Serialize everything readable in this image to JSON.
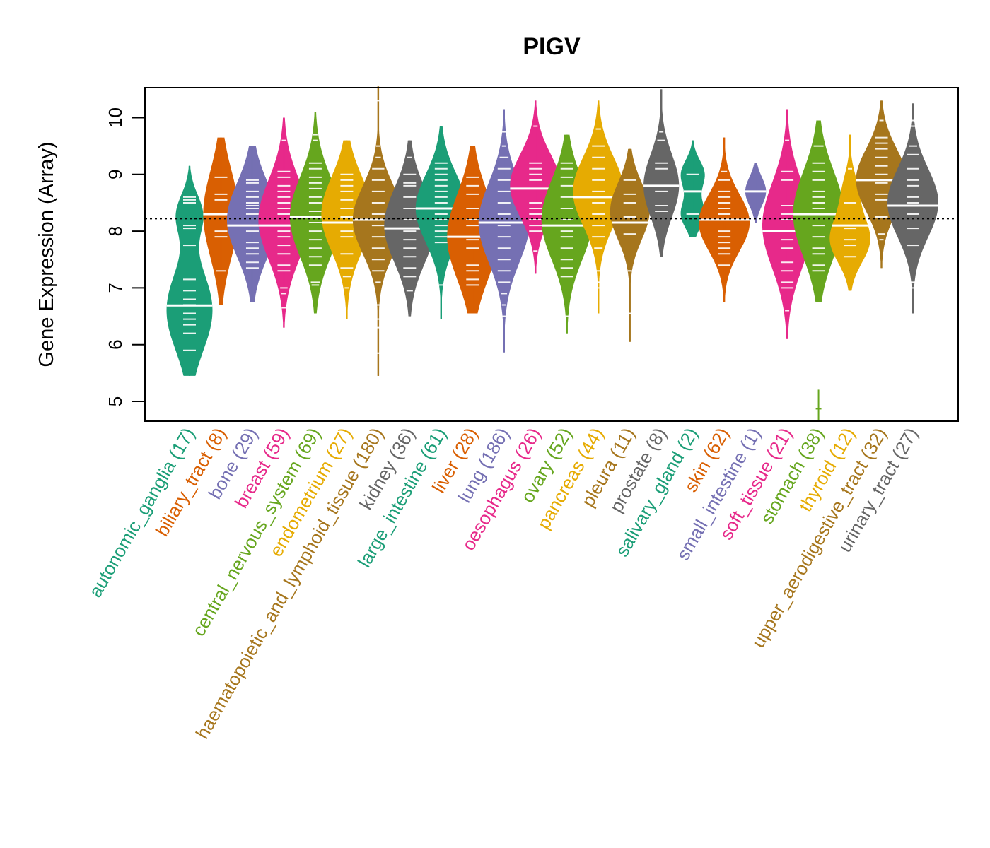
{
  "chart_data": {
    "type": "violin",
    "title": "PIGV",
    "xlabel": "",
    "ylabel": "Gene Expression (Array)",
    "ylim": [
      4.7,
      10.55
    ],
    "yticks": [
      5,
      6,
      7,
      8,
      9,
      10
    ],
    "reference_line": 8.22,
    "grid": false,
    "legend": "none",
    "categories": [
      {
        "name": "autonomic_ganglia",
        "n": 17,
        "color": "#1B9E77",
        "min": 5.45,
        "max": 9.15,
        "median": 6.69,
        "modes": [
          [
            6.6,
            0.7,
            1.0
          ],
          [
            8.3,
            0.35,
            0.55
          ]
        ],
        "points": [
          5.9,
          6.2,
          6.35,
          6.45,
          6.55,
          6.7,
          6.8,
          6.95,
          7.15,
          7.75,
          8.05,
          8.1,
          8.5,
          8.55,
          8.6
        ]
      },
      {
        "name": "biliary_tract",
        "n": 8,
        "color": "#D95F02",
        "min": 6.7,
        "max": 9.65,
        "median": 8.3,
        "modes": [
          [
            8.3,
            0.75,
            1.0
          ]
        ],
        "points": [
          7.3,
          7.9,
          8.0,
          8.55,
          8.65,
          8.95
        ]
      },
      {
        "name": "bone",
        "n": 29,
        "color": "#7570B3",
        "min": 6.75,
        "max": 9.5,
        "median": 8.1,
        "modes": [
          [
            8.2,
            0.65,
            1.0
          ]
        ],
        "points": [
          7.35,
          7.45,
          7.6,
          7.7,
          7.8,
          8.0,
          8.3,
          8.4,
          8.45,
          8.5,
          8.6,
          8.7,
          8.85,
          8.9
        ]
      },
      {
        "name": "breast",
        "n": 59,
        "color": "#E7298A",
        "min": 6.3,
        "max": 10.0,
        "median": 8.1,
        "modes": [
          [
            8.2,
            0.7,
            1.0
          ]
        ],
        "points": [
          6.65,
          6.9,
          7.0,
          7.3,
          7.4,
          7.6,
          7.75,
          7.9,
          8.0,
          8.3,
          8.4,
          8.5,
          8.6,
          8.7,
          8.8,
          8.95,
          9.05,
          9.6
        ]
      },
      {
        "name": "central_nervous_system",
        "n": 69,
        "color": "#66A61E",
        "min": 6.55,
        "max": 10.1,
        "median": 8.25,
        "modes": [
          [
            8.25,
            0.7,
            1.0
          ]
        ],
        "points": [
          7.05,
          7.1,
          7.4,
          7.55,
          7.7,
          7.85,
          8.0,
          8.15,
          8.35,
          8.5,
          8.6,
          8.75,
          8.85,
          8.95,
          9.1,
          9.2,
          9.6,
          9.7
        ]
      },
      {
        "name": "endometrium",
        "n": 27,
        "color": "#E6AB02",
        "min": 6.45,
        "max": 9.6,
        "median": 8.15,
        "modes": [
          [
            8.3,
            0.65,
            1.0
          ]
        ],
        "points": [
          7.0,
          7.2,
          7.35,
          7.6,
          7.9,
          8.0,
          8.25,
          8.4,
          8.55,
          8.7,
          8.8,
          8.9,
          9.0
        ]
      },
      {
        "name": "haematopoietic_and_lymphoid_tissue",
        "n": 180,
        "color": "#A6761D",
        "min": 5.45,
        "max": 10.55,
        "median": 8.2,
        "modes": [
          [
            8.2,
            0.6,
            1.0
          ]
        ],
        "points": [
          5.85,
          6.3,
          6.45,
          6.7,
          7.1,
          7.3,
          7.5,
          7.7,
          7.9,
          8.1,
          8.3,
          8.5,
          8.7,
          8.9,
          9.1,
          9.3,
          9.5,
          10.3
        ]
      },
      {
        "name": "kidney",
        "n": 36,
        "color": "#666666",
        "min": 6.5,
        "max": 9.6,
        "median": 8.05,
        "modes": [
          [
            8.1,
            0.65,
            1.0
          ]
        ],
        "points": [
          6.95,
          7.2,
          7.35,
          7.55,
          7.7,
          7.85,
          8.0,
          8.2,
          8.4,
          8.6,
          8.8,
          8.85,
          9.0,
          9.3
        ]
      },
      {
        "name": "large_intestine",
        "n": 61,
        "color": "#1B9E77",
        "min": 6.45,
        "max": 9.85,
        "median": 8.4,
        "modes": [
          [
            8.4,
            0.6,
            1.0
          ]
        ],
        "points": [
          7.05,
          7.8,
          7.9,
          8.0,
          8.1,
          8.2,
          8.3,
          8.5,
          8.6,
          8.7,
          8.8,
          8.9,
          9.0,
          9.1,
          9.2
        ]
      },
      {
        "name": "liver",
        "n": 28,
        "color": "#D95F02",
        "min": 6.55,
        "max": 9.5,
        "median": 7.9,
        "modes": [
          [
            7.9,
            0.75,
            1.0
          ]
        ],
        "points": [
          7.05,
          7.15,
          7.3,
          7.4,
          7.7,
          7.85,
          8.1,
          8.2,
          8.4,
          8.65,
          8.8,
          8.95
        ]
      },
      {
        "name": "lung",
        "n": 186,
        "color": "#7570B3",
        "min": 5.85,
        "max": 10.15,
        "median": 8.15,
        "modes": [
          [
            8.15,
            0.7,
            1.0
          ]
        ],
        "points": [
          5.85,
          6.5,
          6.7,
          6.9,
          7.1,
          7.3,
          7.5,
          7.7,
          7.9,
          8.1,
          8.3,
          8.5,
          8.7,
          8.9,
          9.1,
          9.3,
          9.5,
          9.75
        ]
      },
      {
        "name": "oesophagus",
        "n": 26,
        "color": "#E7298A",
        "min": 7.25,
        "max": 10.3,
        "median": 8.75,
        "modes": [
          [
            8.8,
            0.55,
            1.0
          ]
        ],
        "points": [
          7.65,
          8.0,
          8.1,
          8.2,
          8.3,
          8.4,
          8.5,
          8.9,
          9.0,
          9.1,
          9.2,
          9.85
        ]
      },
      {
        "name": "ovary",
        "n": 52,
        "color": "#66A61E",
        "min": 6.2,
        "max": 9.7,
        "median": 8.1,
        "modes": [
          [
            8.2,
            0.7,
            1.0
          ]
        ],
        "points": [
          6.5,
          7.2,
          7.35,
          7.5,
          7.7,
          7.9,
          8.0,
          8.2,
          8.4,
          8.6,
          8.8,
          8.95,
          9.1,
          9.2
        ]
      },
      {
        "name": "pancreas",
        "n": 44,
        "color": "#E6AB02",
        "min": 6.55,
        "max": 10.3,
        "median": 8.6,
        "modes": [
          [
            8.7,
            0.6,
            1.0
          ]
        ],
        "points": [
          7.0,
          7.1,
          7.3,
          7.7,
          7.9,
          8.1,
          8.3,
          8.5,
          8.7,
          8.9,
          9.1,
          9.3,
          9.5,
          9.8
        ]
      },
      {
        "name": "pleura",
        "n": 11,
        "color": "#A6761D",
        "min": 6.05,
        "max": 9.45,
        "median": 8.15,
        "modes": [
          [
            8.35,
            0.5,
            1.0
          ]
        ],
        "points": [
          6.55,
          7.3,
          7.95,
          8.25,
          8.5,
          8.65,
          8.9
        ]
      },
      {
        "name": "prostate",
        "n": 8,
        "color": "#666666",
        "min": 7.55,
        "max": 10.5,
        "median": 8.8,
        "modes": [
          [
            8.8,
            0.55,
            1.0
          ]
        ],
        "points": [
          8.35,
          8.45,
          8.7,
          9.1,
          9.2,
          9.6,
          9.75
        ]
      },
      {
        "name": "salivary_gland",
        "n": 2,
        "color": "#1B9E77",
        "min": 7.9,
        "max": 9.6,
        "median": 8.7,
        "modes": [
          [
            8.3,
            0.25,
            1.0
          ],
          [
            9.0,
            0.25,
            1.0
          ]
        ],
        "points": [
          8.3,
          9.0
        ]
      },
      {
        "name": "skin",
        "n": 62,
        "color": "#D95F02",
        "min": 6.75,
        "max": 9.65,
        "median": 8.2,
        "modes": [
          [
            8.15,
            0.5,
            1.0
          ]
        ],
        "points": [
          7.4,
          7.6,
          7.7,
          7.8,
          7.9,
          8.0,
          8.3,
          8.4,
          8.5,
          8.6,
          8.7,
          8.9,
          9.05
        ]
      },
      {
        "name": "small_intestine",
        "n": 1,
        "color": "#7570B3",
        "min": 8.15,
        "max": 9.2,
        "median": 8.7,
        "modes": [
          [
            8.7,
            0.25,
            1.0
          ]
        ],
        "points": [
          8.7
        ]
      },
      {
        "name": "soft_tissue",
        "n": 21,
        "color": "#E7298A",
        "min": 6.1,
        "max": 10.15,
        "median": 8.0,
        "modes": [
          [
            8.1,
            0.75,
            1.0
          ]
        ],
        "points": [
          6.6,
          7.0,
          7.1,
          7.3,
          7.45,
          7.7,
          7.85,
          8.2,
          8.3,
          8.45,
          8.9,
          9.05,
          9.6
        ]
      },
      {
        "name": "stomach",
        "n": 38,
        "color": "#66A61E",
        "min": 6.75,
        "max": 9.95,
        "median": 8.3,
        "outlier": 4.87,
        "modes": [
          [
            8.3,
            0.75,
            1.0
          ]
        ],
        "points": [
          7.3,
          7.4,
          7.6,
          7.7,
          7.9,
          8.1,
          8.4,
          8.5,
          8.6,
          8.7,
          8.9,
          9.05,
          9.2,
          9.5
        ]
      },
      {
        "name": "thyroid",
        "n": 12,
        "color": "#E6AB02",
        "min": 6.95,
        "max": 9.7,
        "median": 8.1,
        "modes": [
          [
            7.85,
            0.4,
            1.0
          ],
          [
            8.7,
            0.35,
            0.35
          ]
        ],
        "points": [
          7.55,
          7.75,
          7.85,
          8.05,
          8.5,
          9.1
        ]
      },
      {
        "name": "upper_aerodigestive_tract",
        "n": 32,
        "color": "#A6761D",
        "min": 7.35,
        "max": 10.3,
        "median": 8.9,
        "modes": [
          [
            8.9,
            0.55,
            1.0
          ]
        ],
        "points": [
          7.85,
          7.95,
          8.25,
          8.55,
          8.65,
          8.85,
          9.0,
          9.15,
          9.3,
          9.45,
          9.55,
          9.65,
          9.95
        ]
      },
      {
        "name": "urinary_tract",
        "n": 27,
        "color": "#666666",
        "min": 6.55,
        "max": 10.25,
        "median": 8.45,
        "modes": [
          [
            8.5,
            0.6,
            1.0
          ]
        ],
        "points": [
          7.0,
          7.1,
          7.75,
          8.05,
          8.3,
          8.5,
          8.6,
          8.8,
          8.9,
          9.1,
          9.35,
          9.5,
          9.85,
          9.95
        ]
      }
    ]
  }
}
